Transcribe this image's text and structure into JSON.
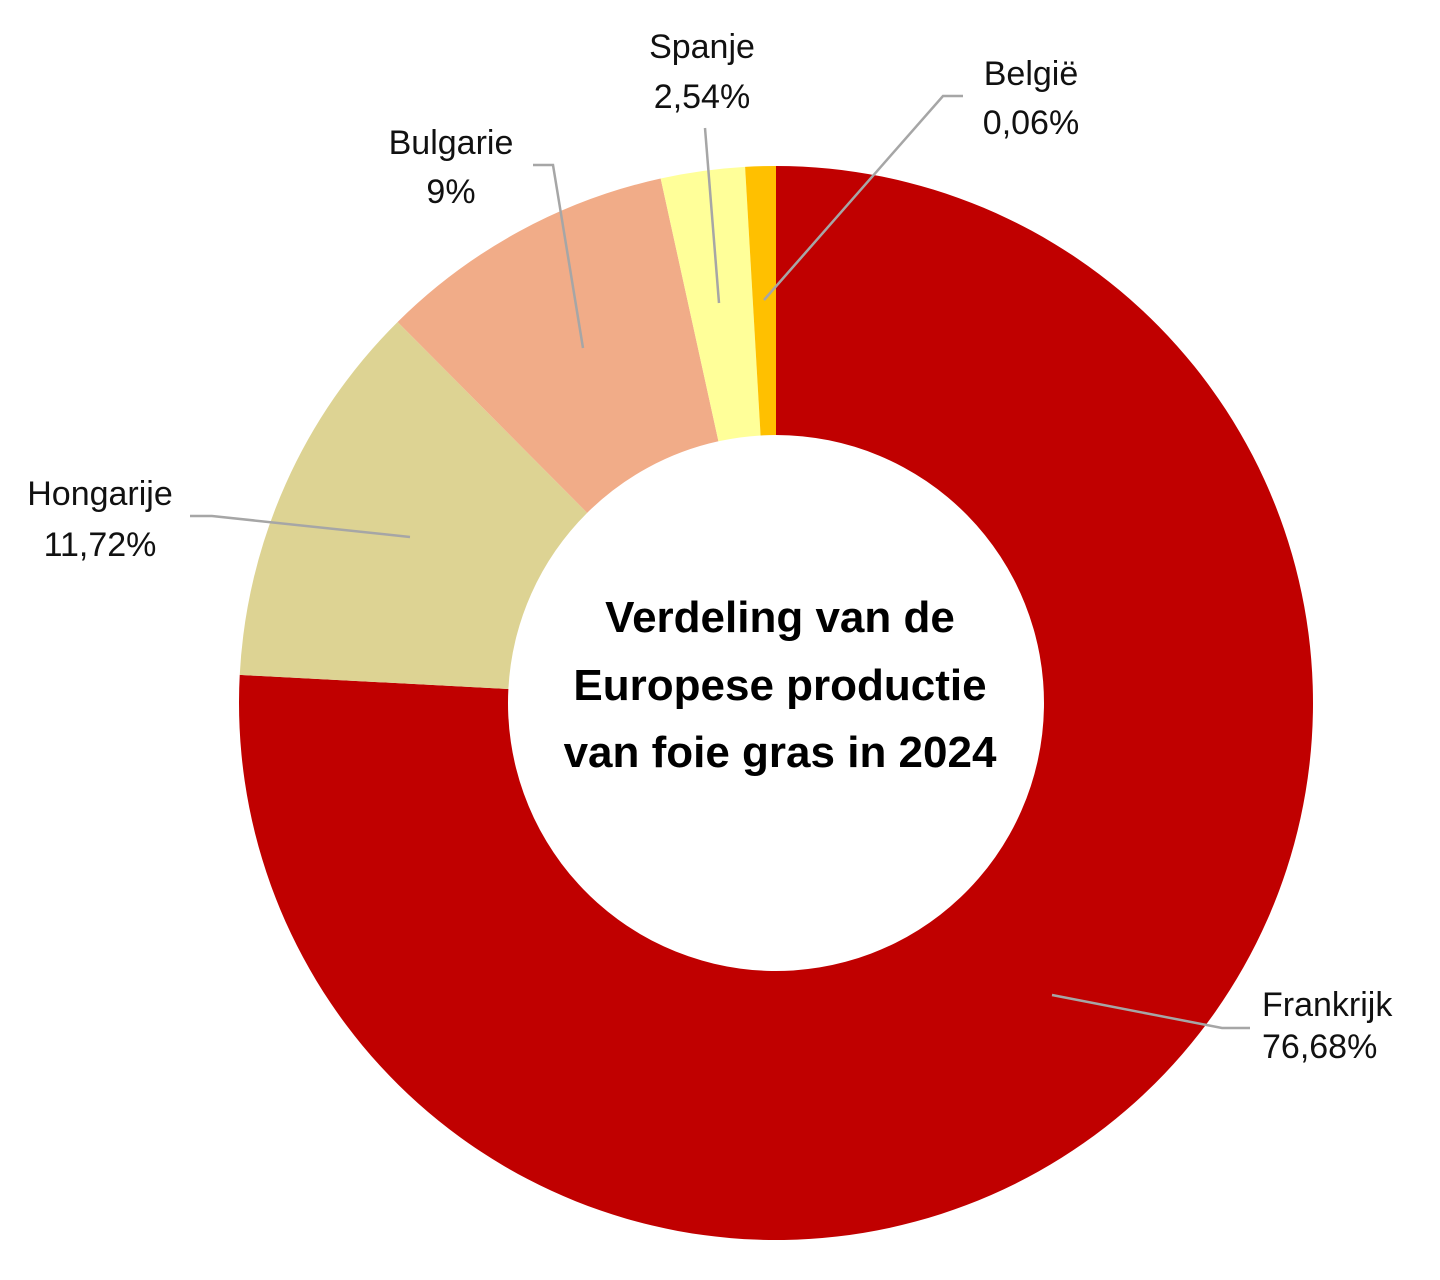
{
  "chart_data": {
    "type": "pie",
    "variant": "donut",
    "title_lines": [
      "Verdeling van de",
      "Europese productie",
      "van foie gras in 2024"
    ],
    "legend": "none",
    "slices": [
      {
        "name": "Frankrijk",
        "value": 76.68,
        "label": "76,68%",
        "color": "#C00000"
      },
      {
        "name": "Hongarije",
        "value": 11.72,
        "label": "11,72%",
        "color": "#DDD393"
      },
      {
        "name": "Bulgarie",
        "value": 9,
        "label": "9%",
        "color": "#F1AC88"
      },
      {
        "name": "Spanje",
        "value": 2.54,
        "label": "2,54%",
        "color": "#FFFF99"
      },
      {
        "name": "België",
        "value": 0.06,
        "label": "0,06%",
        "color": "#FFC000"
      }
    ]
  }
}
